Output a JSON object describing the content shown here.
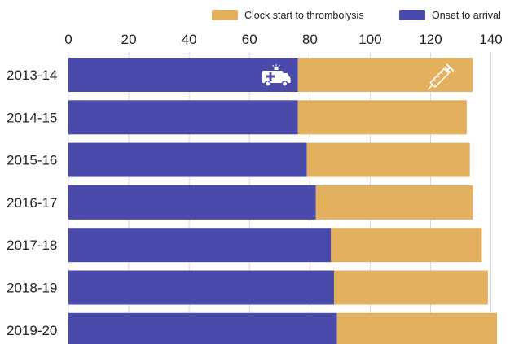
{
  "colors": {
    "onset": "#4a4aaa",
    "clock": "#e3b060",
    "grid": "#d9d9d9",
    "icon": "#ffffff"
  },
  "icons": {
    "onset_icon": "ambulance-icon",
    "clock_icon": "syringe-icon"
  },
  "chart_data": {
    "type": "bar",
    "orientation": "horizontal",
    "stacked": true,
    "categories": [
      "2013-14",
      "2014-15",
      "2015-16",
      "2016-17",
      "2017-18",
      "2018-19",
      "2019-20"
    ],
    "series": [
      {
        "name": "Onset to arrival",
        "values": [
          76,
          76,
          79,
          82,
          87,
          88,
          89
        ]
      },
      {
        "name": "Clock start to thrombolysis",
        "values": [
          58,
          56,
          54,
          52,
          50,
          51,
          53
        ]
      }
    ],
    "xlim": [
      0,
      142
    ],
    "xticks": [
      0,
      20,
      40,
      60,
      80,
      100,
      120,
      140
    ],
    "grid": true,
    "legend_position": "top-right",
    "legend": [
      {
        "series": "Clock start to thrombolysis",
        "label": "Clock start to thrombolysis"
      },
      {
        "series": "Onset to arrival",
        "label": "Onset to arrival"
      }
    ]
  }
}
